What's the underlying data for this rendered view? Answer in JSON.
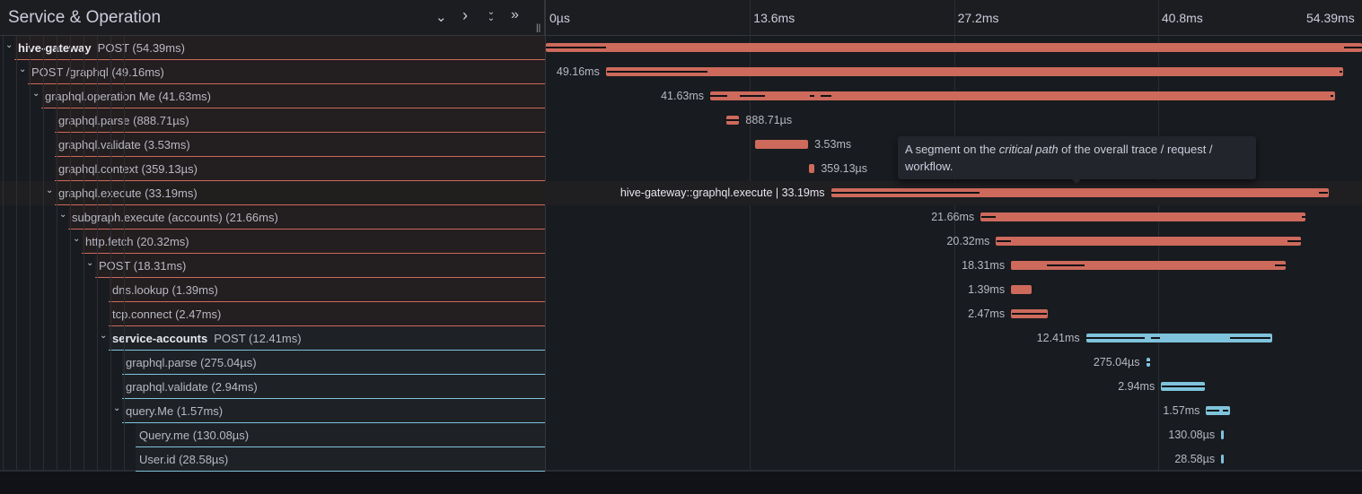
{
  "header": {
    "title": "Service & Operation",
    "controls": [
      {
        "icon": "chevron-down-icon",
        "glyph": "⌄"
      },
      {
        "icon": "chevron-right-icon",
        "glyph": "›"
      },
      {
        "icon": "double-chevron-down-icon",
        "glyph": "⌄⌄"
      },
      {
        "icon": "double-chevron-right-icon",
        "glyph": "»"
      }
    ],
    "resizer": "||"
  },
  "timeline": {
    "total_ms": 54.39,
    "ticks": [
      {
        "label": "0µs",
        "ms": 0
      },
      {
        "label": "13.6ms",
        "ms": 13.6
      },
      {
        "label": "27.2ms",
        "ms": 27.2
      },
      {
        "label": "40.8ms",
        "ms": 40.8
      },
      {
        "label": "54.39ms",
        "ms": 54.39
      }
    ]
  },
  "colors": {
    "hive-gateway": "#cd6a5c",
    "service-accounts": "#7fc3dc",
    "label_bg_gateway": "#231e1f",
    "label_bg_accounts": "#1e2227"
  },
  "spans": [
    {
      "service": "hive-gateway",
      "name": "POST (54.39ms)",
      "depth": 0,
      "expandable": true,
      "start": 0,
      "duration": 54.39,
      "dur_label": "",
      "cp": [
        [
          0,
          4
        ],
        [
          53.2,
          54.39
        ]
      ]
    },
    {
      "service": "",
      "name": "POST /graphql (49.16ms)",
      "depth": 1,
      "expandable": true,
      "start": 4.0,
      "duration": 49.16,
      "dur_label": "49.16ms",
      "cp": [
        [
          4.05,
          10.8
        ],
        [
          52.9,
          53.1
        ]
      ]
    },
    {
      "service": "",
      "name": "graphql.operation Me (41.63ms)",
      "depth": 2,
      "expandable": true,
      "start": 10.95,
      "duration": 41.63,
      "dur_label": "41.63ms",
      "cp": [
        [
          10.95,
          12.1
        ],
        [
          12.9,
          14.6
        ],
        [
          17.6,
          17.9
        ],
        [
          18.3,
          19.0
        ],
        [
          52.3,
          52.5
        ]
      ]
    },
    {
      "service": "",
      "name": "graphql.parse (888.71µs)",
      "depth": 3,
      "expandable": false,
      "start": 12.0,
      "duration": 0.89,
      "dur_label": "888.71µs",
      "cp": [
        [
          12.0,
          12.89
        ]
      ]
    },
    {
      "service": "",
      "name": "graphql.validate (3.53ms)",
      "depth": 3,
      "expandable": false,
      "start": 13.95,
      "duration": 3.53,
      "dur_label": "3.53ms",
      "cp": []
    },
    {
      "service": "",
      "name": "graphql.context (359.13µs)",
      "depth": 3,
      "expandable": false,
      "start": 17.55,
      "duration": 0.36,
      "dur_label": "359.13µs",
      "cp": []
    },
    {
      "service": "",
      "name": "graphql.execute (33.19ms)",
      "depth": 3,
      "expandable": true,
      "start": 19.0,
      "duration": 33.19,
      "dur_label": "hive-gateway::graphql.execute | 33.19ms",
      "cp": [
        [
          19.05,
          28.9
        ],
        [
          51.5,
          52.1
        ]
      ],
      "hover": true
    },
    {
      "service": "",
      "name": "subgraph.execute (accounts) (21.66ms)",
      "depth": 4,
      "expandable": true,
      "start": 28.97,
      "duration": 21.66,
      "dur_label": "21.66ms",
      "cp": [
        [
          29.0,
          30.0
        ],
        [
          50.4,
          50.6
        ]
      ]
    },
    {
      "service": "",
      "name": "http.fetch (20.32ms)",
      "depth": 5,
      "expandable": true,
      "start": 30.0,
      "duration": 20.32,
      "dur_label": "20.32ms",
      "cp": [
        [
          30.05,
          31.0
        ],
        [
          49.4,
          50.3
        ]
      ]
    },
    {
      "service": "",
      "name": "POST (18.31ms)",
      "depth": 6,
      "expandable": true,
      "start": 31.0,
      "duration": 18.31,
      "dur_label": "18.31ms",
      "cp": [
        [
          33.4,
          35.9
        ],
        [
          48.6,
          49.3
        ]
      ]
    },
    {
      "service": "",
      "name": "dns.lookup (1.39ms)",
      "depth": 7,
      "expandable": false,
      "start": 31.0,
      "duration": 1.39,
      "dur_label": "1.39ms",
      "cp": []
    },
    {
      "service": "",
      "name": "tcp.connect (2.47ms)",
      "depth": 7,
      "expandable": false,
      "start": 31.0,
      "duration": 2.47,
      "dur_label": "2.47ms",
      "cp": [
        [
          31.05,
          33.4
        ]
      ]
    },
    {
      "service": "service-accounts",
      "name": "POST (12.41ms)",
      "depth": 7,
      "expandable": true,
      "start": 36.0,
      "duration": 12.41,
      "dur_label": "12.41ms",
      "cp": [
        [
          36.05,
          39.9
        ],
        [
          40.3,
          40.9
        ],
        [
          45.6,
          48.3
        ]
      ]
    },
    {
      "service": "",
      "name": "graphql.parse (275.04µs)",
      "depth": 8,
      "expandable": false,
      "start": 40.0,
      "duration": 0.28,
      "dur_label": "275.04µs",
      "cp": [
        [
          40.05,
          40.25
        ]
      ]
    },
    {
      "service": "",
      "name": "graphql.validate (2.94ms)",
      "depth": 8,
      "expandable": false,
      "start": 41.0,
      "duration": 2.94,
      "dur_label": "2.94ms",
      "cp": [
        [
          41.05,
          43.9
        ]
      ]
    },
    {
      "service": "",
      "name": "query.Me (1.57ms)",
      "depth": 8,
      "expandable": true,
      "start": 44.0,
      "duration": 1.57,
      "dur_label": "1.57ms",
      "cp": [
        [
          44.05,
          44.9
        ],
        [
          45.1,
          45.5
        ]
      ]
    },
    {
      "service": "",
      "name": "Query.me (130.08µs)",
      "depth": 9,
      "expandable": false,
      "start": 45.0,
      "duration": 0.13,
      "dur_label": "130.08µs",
      "cp": []
    },
    {
      "service": "",
      "name": "User.id (28.58µs)",
      "depth": 9,
      "expandable": false,
      "start": 45.0,
      "duration": 0.03,
      "dur_label": "28.58µs",
      "cp": []
    }
  ],
  "tooltip": {
    "before": "A segment on the ",
    "em": "critical path",
    "after": " of the overall trace / request / workflow."
  }
}
